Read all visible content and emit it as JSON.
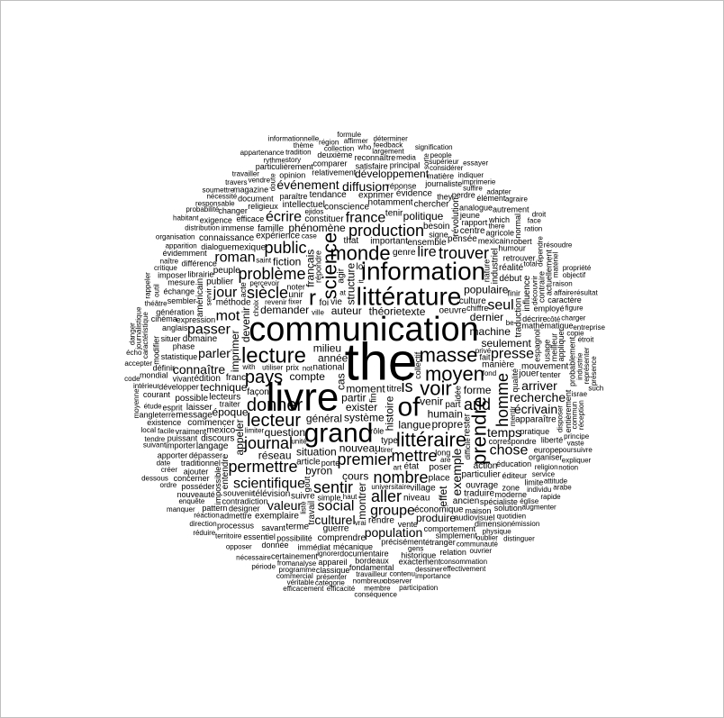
{
  "cloud": {
    "text_color": "#000000",
    "background": "#ffffff",
    "words": [
      "the",
      "livre",
      "communication",
      "information",
      "littérature",
      "grand",
      "of",
      "science",
      "masse",
      "moyen",
      "lecture",
      "littéraire",
      "premier",
      "mettre",
      "lecteur",
      "donner",
      "problème",
      "siècle",
      "voir",
      "pays",
      "journal",
      "monde",
      "production",
      "trouver",
      "prendre",
      "permettre",
      "nombre",
      "scientifique",
      "sentir",
      "homme",
      "and",
      "presse",
      "france",
      "public",
      "écrire",
      "is",
      "lire",
      "seul",
      "social",
      "aller",
      "valeur",
      "écrivain",
      "chose",
      "passer",
      "mot",
      "jour",
      "roman",
      "parler",
      "r",
      "exemple",
      "culturel",
      "population",
      "temps",
      "recherche",
      "arriver",
      "groupe",
      "connaître",
      "effet",
      "produire",
      "événement",
      "développement",
      "diffusion",
      "politique",
      "cas",
      "histoire",
      "système",
      "français",
      "moment",
      "année",
      "compte",
      "structure",
      "partir",
      "langue",
      "auteur",
      "texte",
      "exister",
      "venir",
      "demander",
      "situation",
      "humain",
      "forme",
      "devenir",
      "machine",
      "technique",
      "général",
      "question",
      "dernier",
      "cours",
      "théorie",
      "phénomène",
      "populaire",
      "propre",
      "byron",
      "seulement",
      "fiction",
      "imprimer",
      "montrer",
      "époque",
      "nouveau",
      "réseau",
      "appeler",
      "milieu",
      "type",
      "fin",
      "foi",
      "oeuvre",
      "état",
      "lecteurs",
      "ensemble",
      "télévision",
      "unir",
      "national",
      "culture",
      "niveau",
      "manière",
      "important",
      "poser",
      "constituer",
      "titre",
      "commencer",
      "méthode",
      "besoin",
      "rendre",
      "article",
      "place",
      "loi",
      "genre",
      "action",
      "domaine",
      "expérience",
      "édition",
      "discours",
      "conscience",
      "village",
      "publier",
      "économique",
      "suivre",
      "peuple",
      "particulier",
      "famille",
      "traduction",
      "industriel",
      "pensée",
      "notamment",
      "entendre",
      "guerre",
      "that",
      "vie",
      "part",
      "mexique",
      "rester",
      "franc",
      "travail",
      "possible",
      "américain",
      "langage",
      "laisser",
      "révolution",
      "intellectuel",
      "tenir",
      "mexico",
      "tendance",
      "apparaître",
      "jouer",
      "traduire",
      "début",
      "comprendre",
      "exemplaire",
      "façon",
      "terme",
      "agir",
      "ancien",
      "message",
      "mouvement",
      "ouvrage",
      "influence",
      "exprimer",
      "connaissance",
      "centre",
      "chercher",
      "réalité",
      "évidence",
      "statistique",
      "rapport",
      "prix",
      "dépasser",
      "contradiction",
      "vivant",
      "traiter",
      "phase",
      "espagnol",
      "éducation",
      "précisément",
      "efficace",
      "correspondre",
      "décrire",
      "souvenir",
      "expression",
      "mathématique",
      "mécanique",
      "développer",
      "comportement",
      "possibilité",
      "réponse",
      "usage",
      "différence",
      "immense",
      "dialogue",
      "collectif",
      "simple",
      "sembler",
      "impossible",
      "designer",
      "mexicain",
      "paraître",
      "retrouver",
      "audiovisuel",
      "qualité",
      "pratique",
      "rôle",
      "éditeur",
      "documentaire",
      "religieux",
      "jeune",
      "noter",
      "immédiat",
      "traditionnel",
      "spécialiste",
      "maison",
      "vente",
      "tenter",
      "savant",
      "porte",
      "vraiment",
      "contraire",
      "librairie",
      "génération",
      "relativement",
      "étranger",
      "historique",
      "simplement",
      "analogue",
      "agricole",
      "employé",
      "meilleur",
      "signe",
      "journaliste",
      "répondre",
      "importer",
      "situer",
      "esprit",
      "moderne",
      "nature",
      "zone",
      "acte",
      "admettre",
      "bordeaux",
      "fondamental",
      "définir",
      "anglais",
      "mesure",
      "appareil",
      "fait",
      "ajouter",
      "posséder",
      "humour",
      "document",
      "long",
      "perdre",
      "actuellement",
      "échange",
      "europe",
      "finir",
      "certainement",
      "which",
      "cinéma",
      "organiser",
      "donnée",
      "essentiel",
      "satisfaire",
      "probablement",
      "they",
      "processus",
      "appliquer",
      "évidemment",
      "changer",
      "exigence",
      "concerner",
      "liberté",
      "magazine",
      "existence",
      "exactement",
      "solution",
      "modifier",
      "opinion",
      "courant",
      "puissant",
      "comparer",
      "nouveauté",
      "principal",
      "matière",
      "angleterre",
      "particulièrement",
      "normal",
      "entièrement",
      "goût",
      "apporter",
      "reconnaître",
      "dimension",
      "imposer",
      "classique",
      "relation",
      "deuxième",
      "autrement",
      "caractère",
      "pattern",
      "limite",
      "élément",
      "robert",
      "idée",
      "chiffre",
      "mondial",
      "distribution",
      "religion",
      "mentir",
      "fond",
      "communauté",
      "vendre",
      "gens",
      "quotidien",
      "considérer",
      "percevoir",
      "total",
      "côté",
      "facile",
      "physique",
      "travailleur",
      "analyse",
      "responsable",
      "dépendre",
      "limiter",
      "utiliser",
      "suffire",
      "contenu",
      "difficile",
      "étude",
      "revenir",
      "saint",
      "media",
      "raison",
      "case",
      "présenter",
      "dessiner",
      "caractéristique",
      "théâtre",
      "affaire",
      "universitaire",
      "apparition",
      "intérieur",
      "nombreux",
      "copie",
      "choix",
      "industrie",
      "largement",
      "représenter",
      "imprimerie",
      "individu",
      "service",
      "liste",
      "charger",
      "opposer",
      "territoire",
      "commun",
      "programme",
      "consommation",
      "église",
      "enquête",
      "observer",
      "réaction",
      "nécessaire",
      "critique",
      "doute",
      "ville",
      "tendre",
      "sorte",
      "vrai",
      "créer",
      "oublier",
      "organisation",
      "there",
      "outil",
      "catégorie",
      "ignorer",
      "ration",
      "story",
      "unité",
      "naître",
      "figure",
      "collection",
      "israe",
      "haut",
      "suivant",
      "matériel",
      "indiquer",
      "local",
      "date",
      "adapter",
      "probabilité",
      "ouvrier",
      "travailler",
      "tradition",
      "nécessité",
      "feedback",
      "réception",
      "membre",
      "privé",
      "principe",
      "accepter",
      "journalistique",
      "commercial",
      "affirmer",
      "supérieur",
      "importance",
      "période",
      "étroit",
      "signification",
      "direction",
      "fixer",
      "poursuivre",
      "effectivement",
      "entreprise",
      "rythme",
      "découvrir",
      "efficacité",
      "augmenter",
      "conséquence",
      "travers",
      "émission",
      "thème",
      "objectif",
      "participation",
      "soumettre",
      "résoudre",
      "agraire",
      "véritable",
      "people",
      "manquer",
      "moyenne",
      "vaste",
      "déterminer",
      "ejidos",
      "danger",
      "attitude",
      "face",
      "habitant",
      "appartenance",
      "informationnelle",
      "rapide",
      "rappeler",
      "écho",
      "ordre",
      "région",
      "notion",
      "propriété",
      "essayer",
      "formule",
      "disposer",
      "servir",
      "art",
      "droit",
      "résultat",
      "réduire",
      "présence",
      "expliquer",
      "distinguer",
      "dessous",
      "tirer",
      "code",
      "are",
      "efficacement",
      "arabe",
      "from",
      "not",
      "it",
      "be",
      "at",
      "with",
      "who",
      "such"
    ]
  }
}
